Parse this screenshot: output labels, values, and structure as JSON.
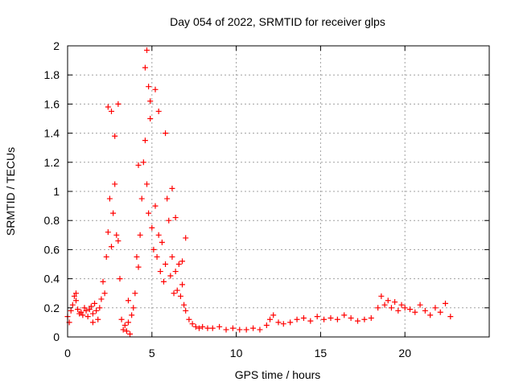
{
  "chart_data": {
    "type": "scatter",
    "title": "Day 054 of 2022, SRMTID for receiver glps",
    "xlabel": "GPS time / hours",
    "ylabel": "SRMTID / TECUs",
    "xlim": [
      0,
      25
    ],
    "ylim": [
      0,
      2
    ],
    "xticks": [
      "0",
      "5",
      "10",
      "15",
      "20"
    ],
    "yticks": [
      "0",
      "0.2",
      "0.4",
      "0.6",
      "0.8",
      "1",
      "1.2",
      "1.4",
      "1.6",
      "1.8",
      "2"
    ],
    "grid": true,
    "marker": "+",
    "marker_color": "#ff0000",
    "series": [
      {
        "name": "SRMTID",
        "x": [
          0.0,
          0.1,
          0.2,
          0.3,
          0.4,
          0.5,
          0.6,
          0.7,
          0.8,
          0.9,
          1.0,
          1.1,
          1.2,
          1.3,
          1.4,
          1.5,
          1.6,
          1.7,
          1.8,
          1.9,
          2.0,
          2.1,
          2.2,
          2.3,
          2.4,
          2.5,
          2.6,
          2.7,
          2.8,
          2.9,
          3.0,
          3.1,
          3.2,
          3.3,
          3.4,
          3.5,
          3.6,
          3.7,
          3.8,
          3.9,
          4.0,
          4.1,
          4.2,
          4.3,
          4.4,
          4.5,
          4.6,
          4.7,
          4.8,
          4.9,
          5.0,
          5.1,
          5.2,
          5.3,
          5.4,
          5.5,
          5.6,
          5.7,
          5.8,
          5.9,
          6.0,
          6.1,
          6.2,
          6.3,
          6.4,
          6.5,
          6.6,
          6.7,
          6.8,
          6.9,
          7.0,
          7.2,
          7.4,
          7.6,
          7.8,
          8.0,
          8.3,
          8.6,
          9.0,
          9.4,
          9.8,
          10.2,
          10.6,
          11.0,
          11.4,
          11.8,
          12.0,
          12.2,
          12.5,
          12.8,
          13.2,
          13.6,
          14.0,
          14.4,
          14.8,
          15.2,
          15.6,
          16.0,
          16.4,
          16.8,
          17.2,
          17.6,
          18.0,
          18.4,
          18.6,
          18.8,
          19.0,
          19.2,
          19.4,
          19.6,
          19.8,
          20.0,
          20.3,
          20.6,
          20.9,
          21.2,
          21.5,
          21.8,
          22.1,
          22.4,
          22.7,
          2.4,
          2.6,
          2.8,
          3.0,
          4.6,
          4.7,
          4.8,
          4.9,
          5.2,
          5.4,
          5.8,
          6.4,
          6.8,
          0.5,
          1.5,
          3.6,
          4.2,
          6.2,
          7.0
        ],
        "y": [
          0.14,
          0.1,
          0.18,
          0.22,
          0.28,
          0.25,
          0.19,
          0.16,
          0.17,
          0.15,
          0.2,
          0.18,
          0.14,
          0.19,
          0.21,
          0.16,
          0.23,
          0.18,
          0.12,
          0.2,
          0.26,
          0.38,
          0.3,
          0.55,
          0.72,
          0.95,
          0.62,
          0.85,
          1.05,
          0.7,
          0.66,
          0.4,
          0.12,
          0.05,
          0.08,
          0.04,
          0.1,
          0.02,
          0.15,
          0.2,
          0.3,
          0.55,
          0.48,
          0.7,
          0.95,
          1.2,
          1.35,
          1.05,
          0.85,
          1.5,
          0.75,
          0.6,
          0.9,
          0.55,
          0.7,
          0.45,
          0.65,
          0.38,
          0.5,
          0.95,
          0.8,
          0.42,
          0.55,
          0.3,
          0.45,
          0.32,
          0.5,
          0.28,
          0.36,
          0.22,
          0.18,
          0.12,
          0.09,
          0.07,
          0.06,
          0.07,
          0.06,
          0.06,
          0.07,
          0.05,
          0.06,
          0.05,
          0.05,
          0.06,
          0.05,
          0.08,
          0.12,
          0.15,
          0.1,
          0.09,
          0.1,
          0.12,
          0.13,
          0.11,
          0.14,
          0.12,
          0.13,
          0.12,
          0.15,
          0.13,
          0.11,
          0.12,
          0.13,
          0.2,
          0.28,
          0.22,
          0.25,
          0.2,
          0.24,
          0.18,
          0.22,
          0.2,
          0.19,
          0.17,
          0.22,
          0.18,
          0.15,
          0.2,
          0.17,
          0.23,
          0.14,
          1.58,
          1.55,
          1.38,
          1.6,
          1.85,
          1.97,
          1.72,
          1.62,
          1.7,
          1.55,
          1.4,
          0.82,
          0.52,
          0.3,
          0.1,
          0.25,
          1.18,
          1.02,
          0.68
        ]
      }
    ]
  }
}
